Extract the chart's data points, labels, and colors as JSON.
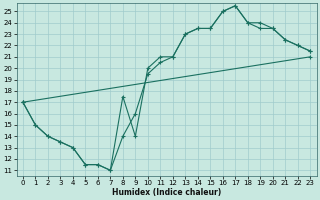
{
  "xlabel": "Humidex (Indice chaleur)",
  "bg_color": "#c8e8e0",
  "grid_color": "#a0cccc",
  "line_color": "#1a7060",
  "xlim": [
    -0.5,
    23.5
  ],
  "ylim": [
    10.5,
    25.7
  ],
  "xticks": [
    0,
    1,
    2,
    3,
    4,
    5,
    6,
    7,
    8,
    9,
    10,
    11,
    12,
    13,
    14,
    15,
    16,
    17,
    18,
    19,
    20,
    21,
    22,
    23
  ],
  "yticks": [
    11,
    12,
    13,
    14,
    15,
    16,
    17,
    18,
    19,
    20,
    21,
    22,
    23,
    24,
    25
  ],
  "line1_x": [
    0,
    23
  ],
  "line1_y": [
    17,
    21
  ],
  "line2_x": [
    0,
    1,
    2,
    3,
    4,
    5,
    6,
    7,
    8,
    9,
    10,
    11,
    12,
    13,
    14,
    15,
    16,
    17,
    18,
    19,
    20,
    21,
    22,
    23
  ],
  "line2_y": [
    17,
    15,
    14,
    13.5,
    13,
    11.5,
    11.5,
    11,
    14,
    16,
    19.5,
    20.5,
    21,
    23,
    23.5,
    23.5,
    25,
    25.5,
    24,
    23.5,
    23.5,
    22.5,
    22,
    21.5
  ],
  "line3_x": [
    0,
    1,
    2,
    3,
    4,
    5,
    6,
    7,
    8,
    9,
    10,
    11,
    12,
    13,
    14,
    15,
    16,
    17,
    18,
    19,
    20,
    21,
    22,
    23
  ],
  "line3_y": [
    17,
    15,
    14,
    13.5,
    13,
    11.5,
    11.5,
    11,
    17.5,
    14,
    20,
    21,
    21,
    23,
    23.5,
    23.5,
    25,
    25.5,
    24,
    24,
    23.5,
    22.5,
    22,
    21.5
  ],
  "tick_fontsize": 5,
  "xlabel_fontsize": 5.5
}
